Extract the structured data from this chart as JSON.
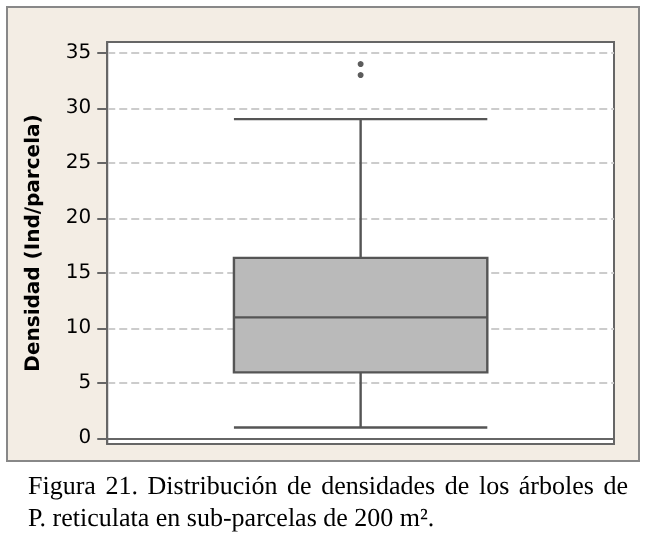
{
  "chart_data": {
    "type": "box",
    "ylabel": "Densidad (Ind/parcela)",
    "categories": [
      null
    ],
    "boxes": [
      {
        "low": 1,
        "q1": 6,
        "median": 11,
        "q3": 16.4,
        "high": 29,
        "outliers": [
          33,
          34
        ]
      }
    ],
    "color": "#bababa",
    "ylim": [
      -0.5,
      36
    ],
    "yticks": [
      0,
      5,
      10,
      15,
      20,
      25,
      30,
      35
    ],
    "grid": "y",
    "annotations": [
      "Figura 21. Distribución de densidades de los árboles de P. reticulata en sub-parcelas de 200 m²."
    ]
  }
}
